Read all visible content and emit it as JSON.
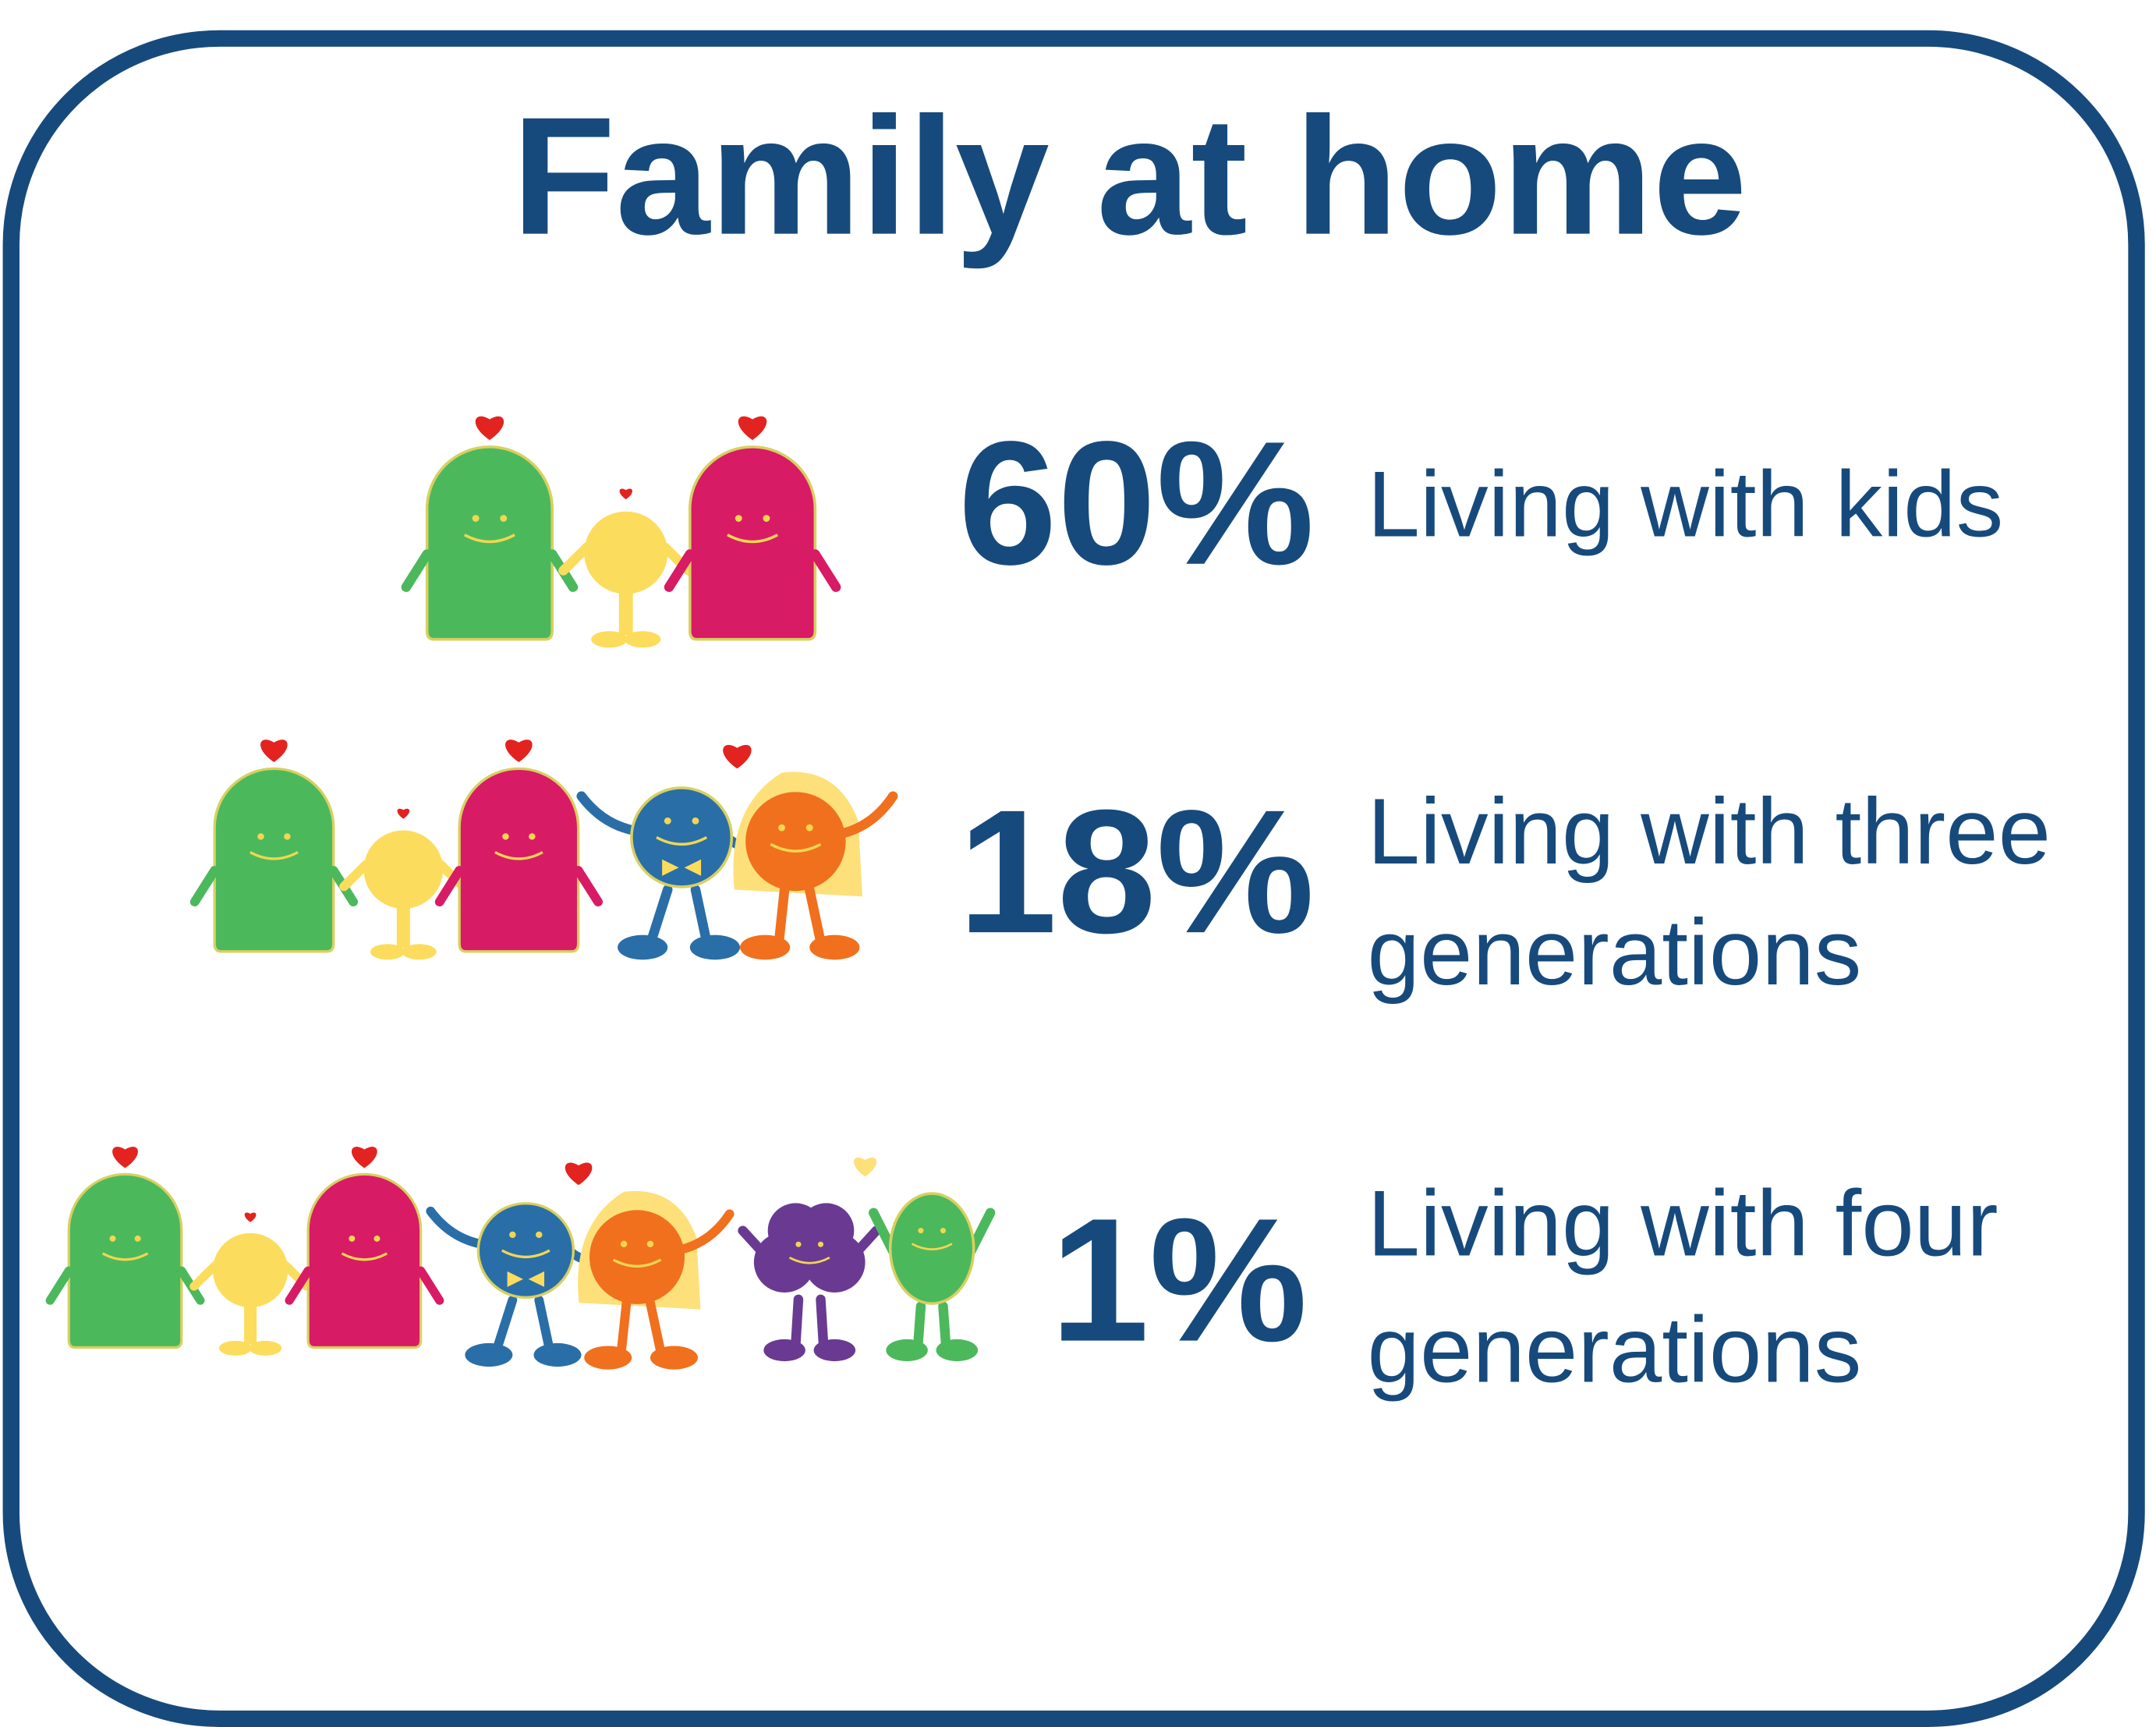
{
  "title": "Family at home",
  "items": [
    {
      "value": "60%",
      "label_lines": [
        "Living with kids"
      ]
    },
    {
      "value": "18%",
      "label_lines": [
        "Living with three",
        "generations"
      ]
    },
    {
      "value": "1%",
      "label_lines": [
        "Living with four",
        "generations"
      ]
    }
  ]
}
